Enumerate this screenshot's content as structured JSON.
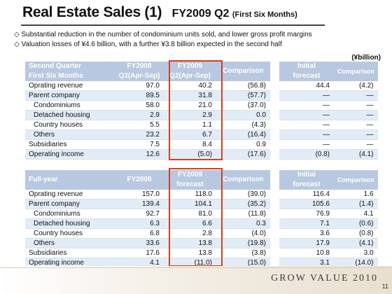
{
  "title": {
    "main": "Real Estate Sales (1)",
    "sub": "FY2009 Q2",
    "paren": "(First Six Months)"
  },
  "bullets": [
    "◇  Substantial reduction in the number of condominium units sold, and lower gross profit margins",
    "◇  Valuation losses of ¥4.6 billion, with a further ¥3.8 billion expected in the second half"
  ],
  "unit": "(¥billion)",
  "top": {
    "header": {
      "label1": "Second Quarter",
      "label2": "First Six Months",
      "c1a": "FY2008",
      "c1b": "Q2(Apr-Sep)",
      "c2a": "FY2009",
      "c2b": "Q2(Apr-Sep)",
      "c3": "Comparison",
      "c4a": "Initial",
      "c4b": "forecast",
      "c5": "Comparison"
    },
    "rows": [
      {
        "label": "Oprating revenue",
        "v1": "97.0",
        "v2": "40.2",
        "v3": "(56.8)",
        "v4": "44.4",
        "v5": "(4.2)"
      },
      {
        "label": "Parent company",
        "v1": "89.5",
        "v2": "31.8",
        "v3": "(57.7)",
        "v4": "—",
        "v5": "—"
      },
      {
        "label": "Condominiums",
        "v1": "58.0",
        "v2": "21.0",
        "v3": "(37.0)",
        "v4": "—",
        "v5": "—"
      },
      {
        "label": "Detached housing",
        "v1": "2.9",
        "v2": "2.9",
        "v3": "0.0",
        "v4": "—",
        "v5": "—"
      },
      {
        "label": "Country houses",
        "v1": "5.5",
        "v2": "1.1",
        "v3": "(4.3)",
        "v4": "—",
        "v5": "—"
      },
      {
        "label": "Others",
        "v1": "23.2",
        "v2": "6.7",
        "v3": "(16.4)",
        "v4": "—",
        "v5": "—"
      },
      {
        "label": "Subsidiaries",
        "v1": "7.5",
        "v2": "8.4",
        "v3": "0.9",
        "v4": "—",
        "v5": "—"
      },
      {
        "label": "Operating income",
        "v1": "12.6",
        "v2": "(5.0)",
        "v3": "(17.6)",
        "v4": "(0.8)",
        "v5": "(4.1)"
      }
    ]
  },
  "bottom": {
    "header": {
      "label": "Full-year",
      "c1": "FY2008",
      "c2a": "FY2009",
      "c2b": "forecast",
      "c3": "Comparison",
      "c4a": "Initial",
      "c4b": "forecast",
      "c5": "Comparison"
    },
    "rows": [
      {
        "label": "Oprating revenue",
        "v1": "157.0",
        "v2": "118.0",
        "v3": "(39.0)",
        "v4": "116.4",
        "v5": "1.6"
      },
      {
        "label": "Parent company",
        "v1": "139.4",
        "v2": "104.1",
        "v3": "(35.2)",
        "v4": "105.6",
        "v5": "(1.4)"
      },
      {
        "label": "Condominiums",
        "v1": "92.7",
        "v2": "81.0",
        "v3": "(11.8)",
        "v4": "76.9",
        "v5": "4.1"
      },
      {
        "label": "Detached housing",
        "v1": "6.3",
        "v2": "6.6",
        "v3": "0.3",
        "v4": "7.1",
        "v5": "(0.6)"
      },
      {
        "label": "Country houses",
        "v1": "6.8",
        "v2": "2.8",
        "v3": "(4.0)",
        "v4": "3.6",
        "v5": "(0.8)"
      },
      {
        "label": "Others",
        "v1": "33.6",
        "v2": "13.8",
        "v3": "(19.8)",
        "v4": "17.9",
        "v5": "(4.1)"
      },
      {
        "label": "Subsidiaries",
        "v1": "17.6",
        "v2": "13.8",
        "v3": "(3.8)",
        "v4": "10.8",
        "v5": "3.0"
      },
      {
        "label": "Operating income",
        "v1": "4.1",
        "v2": "(11.0)",
        "v3": "(15.0)",
        "v4": "3.1",
        "v5": "(14.0)"
      }
    ]
  },
  "footer": {
    "brand": "GROW VALUE 2010",
    "page": "11"
  },
  "colors": {
    "header": "#b8c8e0",
    "alt_row": "#e2ecf7",
    "highlight": "#d4401f"
  }
}
